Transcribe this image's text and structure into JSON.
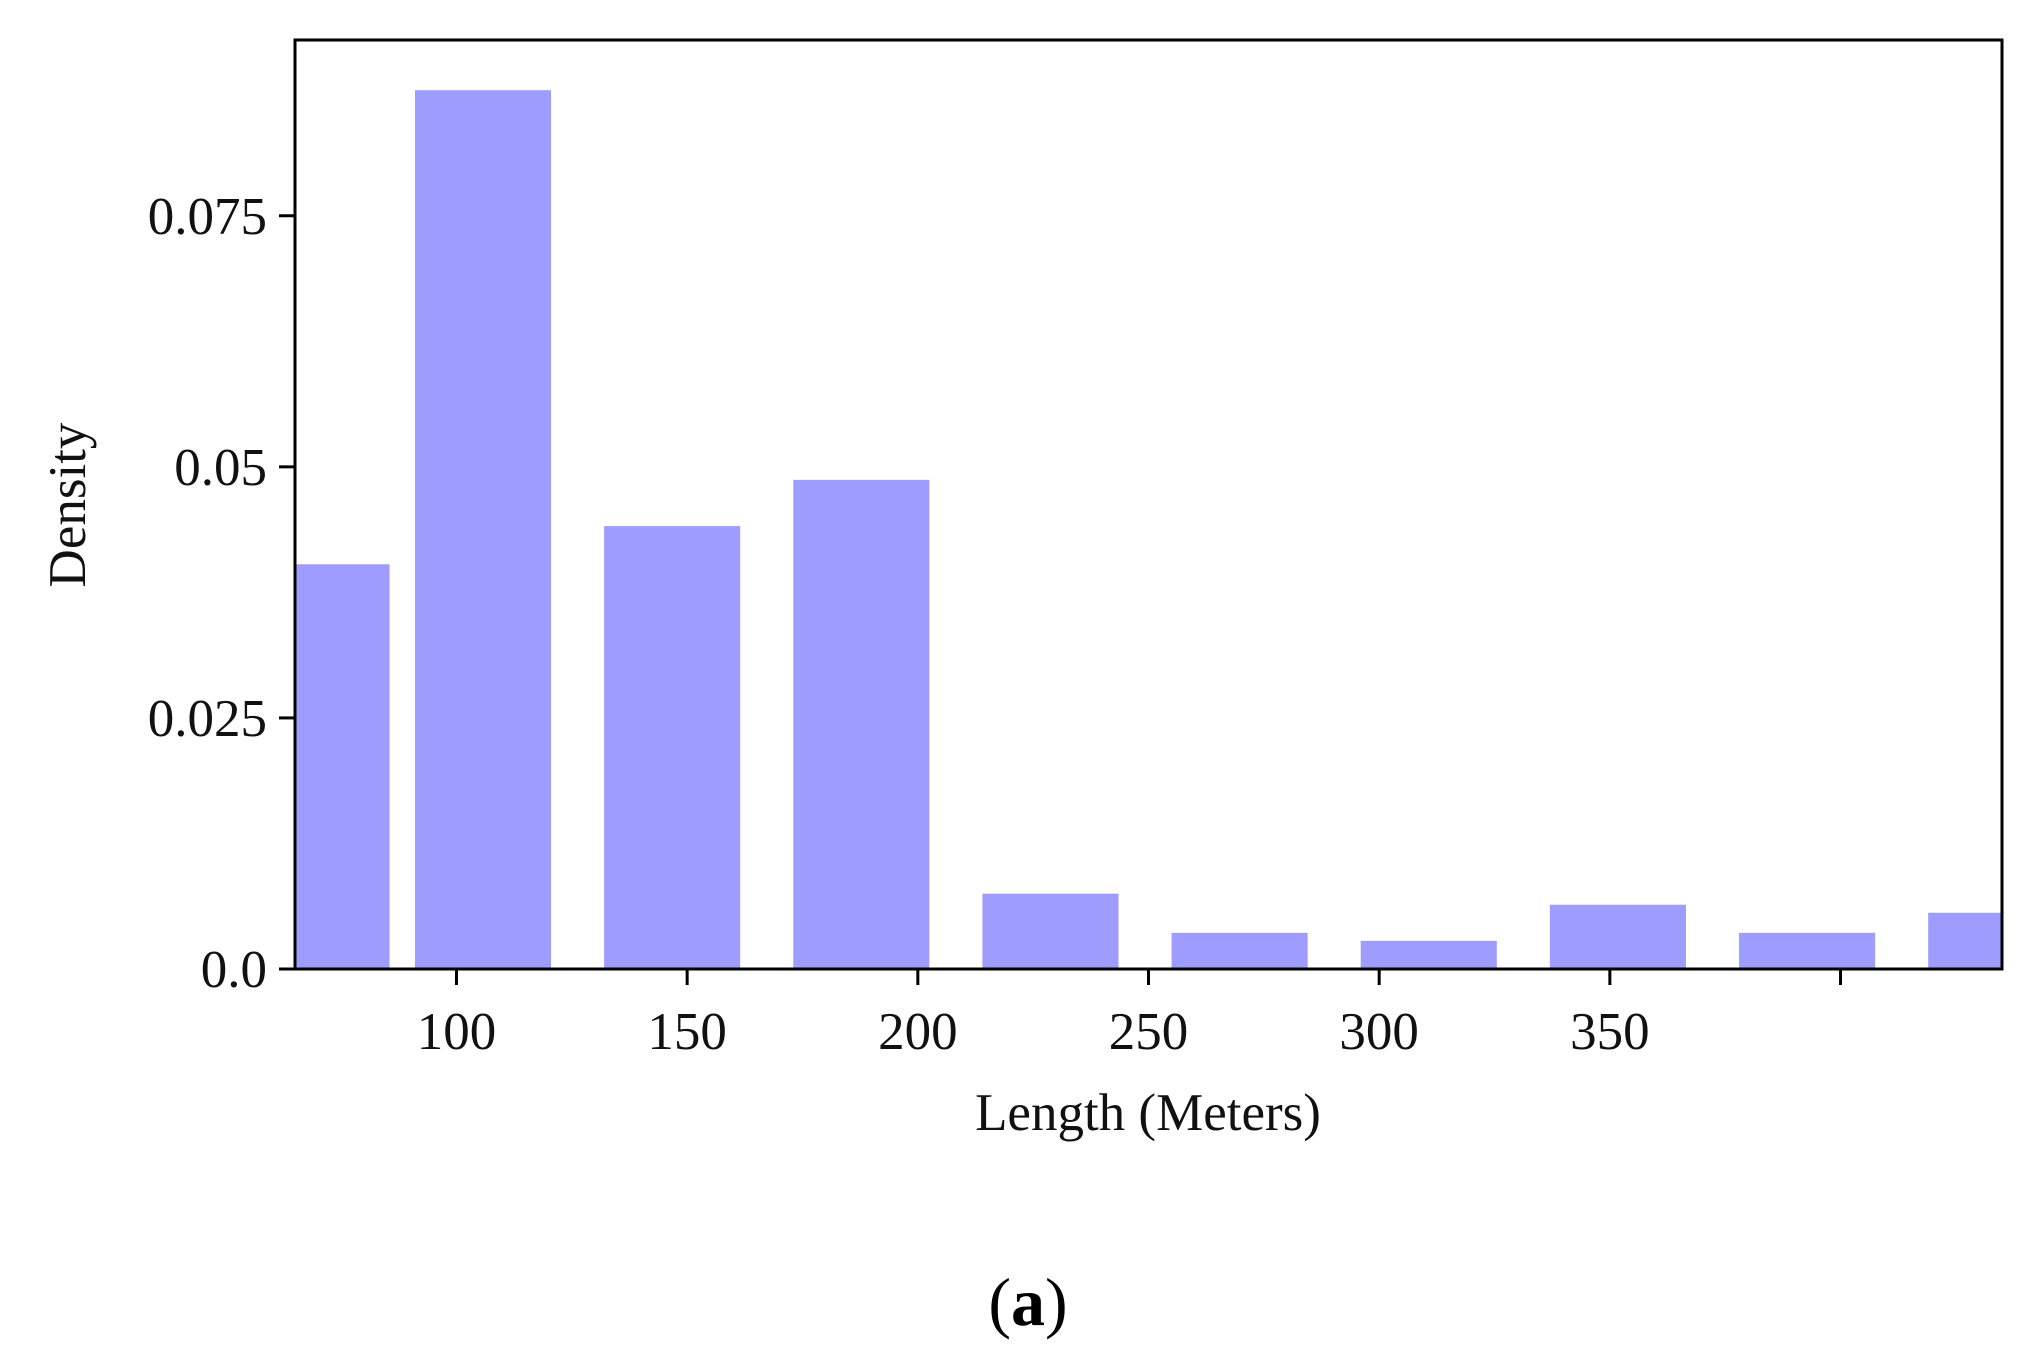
{
  "chart_data": {
    "type": "bar",
    "xlabel": "Length (Meters)",
    "ylabel": "Density",
    "xlim": [
      65,
      435
    ],
    "ylim": [
      0,
      0.0925
    ],
    "x_ticks": [
      100,
      150,
      200,
      250,
      300,
      350,
      400
    ],
    "x_tick_labels": [
      "100",
      "150",
      "200",
      "250",
      "300",
      "350",
      ""
    ],
    "y_ticks": [
      0,
      0.025,
      0.05,
      0.075
    ],
    "y_tick_labels": [
      "0.0",
      "0.025",
      "0.05",
      "0.075"
    ],
    "bar_width": 29.5,
    "bars": [
      {
        "x_start": 56,
        "value": 0.0403
      },
      {
        "x_start": 91,
        "value": 0.0875
      },
      {
        "x_start": 132,
        "value": 0.0441
      },
      {
        "x_start": 173,
        "value": 0.0487
      },
      {
        "x_start": 214,
        "value": 0.0075
      },
      {
        "x_start": 255,
        "value": 0.0036
      },
      {
        "x_start": 296,
        "value": 0.0028
      },
      {
        "x_start": 337,
        "value": 0.0064
      },
      {
        "x_start": 378,
        "value": 0.0036
      },
      {
        "x_start": 419,
        "value": 0.0056
      }
    ],
    "bar_color": "#9e9cff",
    "grid": false
  },
  "caption": {
    "open": "(",
    "letter": "a",
    "close": ")"
  }
}
